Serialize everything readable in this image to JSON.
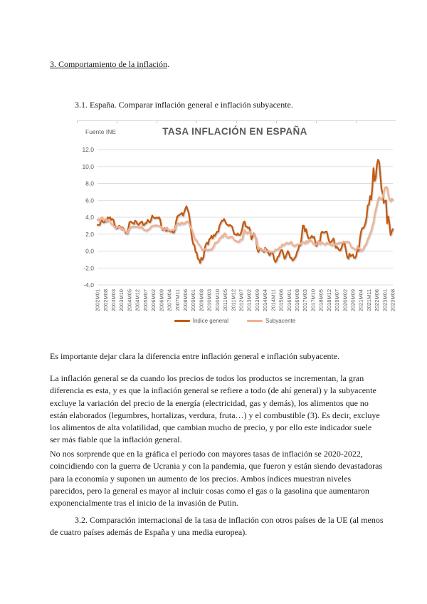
{
  "document": {
    "heading": "3. Comportamiento de la inflación",
    "heading_period": ".",
    "section_3_1": "3.1. España. Comparar inflación general e inflación subyacente.",
    "paragraph_intro": "Es importante dejar clara la diferencia entre inflación general e inflación subyacente.",
    "paragraph_general_vs_subyacente": "La inflación general se da cuando los precios de todos los productos se incrementan, la gran diferencia es esta, y es que la inflación general se refiere a todo (de ahí general) y la subyacente excluye la variación del precio de la energía (electricidad, gas y demás), los alimentos que no están elaborados (legumbres, hortalizas, verdura, fruta…) y el combustible (3). Es decir, excluye los alimentos de alta volatilidad, que cambian mucho de precio, y por ello este indicador suele ser más fiable que la inflación general.",
    "paragraph_grafica": "No nos sorprende que en la gráfica el periodo con mayores tasas de inflación se 2020-2022, coincidiendo con la guerra de Ucrania y con la pandemia, que fueron y están siendo devastadoras para la economía y suponen un aumento de los precios. Ambos índices muestran niveles parecidos, pero la general es mayor al incluir cosas como el gas o la gasolina que aumentaron exponencialmente tras el inicio de la invasión de Putin.",
    "section_3_2": "3.2. Comparación internacional de la tasa de inflación con otros países de la UE (al menos de cuatro países además de España y una media europea)."
  },
  "chart_data": {
    "type": "line",
    "title": "TASA INFLACIÓN EN ESPAÑA",
    "source_note": "Fuente INE",
    "xlabel": "",
    "ylabel": "",
    "ylim": [
      -4,
      12
    ],
    "y_tick_labels": [
      "12,0",
      "10,0",
      "8,0",
      "6,0",
      "4,0",
      "2,0",
      "0,0",
      "-2,0",
      "-4,0"
    ],
    "grid": true,
    "legend_position": "bottom",
    "x_frequency": "monthly",
    "months_per_tick": 7,
    "x_tick_labels": [
      "2002M01",
      "2002M08",
      "2003M03",
      "2003M10",
      "2004M05",
      "2004M12",
      "2005M07",
      "2006M02",
      "2006M09",
      "2007M04",
      "2007M11",
      "2008M06",
      "2009M01",
      "2009M08",
      "2010M03",
      "2010M10",
      "2011M05",
      "2011M12",
      "2012M07",
      "2013M02",
      "2013M09",
      "2014M04",
      "2014M11",
      "2015M06",
      "2016M01",
      "2016M08",
      "2017M03",
      "2017M10",
      "2018M05",
      "2018M12",
      "2019M07",
      "2020M02",
      "2020M09",
      "2021M04",
      "2021M11",
      "2022M06",
      "2023M01",
      "2023M08"
    ],
    "colors": {
      "indice_general": "#C55A11",
      "subyacente": "#F2B091"
    },
    "series": [
      {
        "name": "Índice general",
        "color_key": "indice_general",
        "values": [
          3.1,
          3.1,
          3.1,
          3.6,
          3.6,
          3.4,
          3.4,
          3.6,
          3.5,
          4.0,
          3.9,
          4.0,
          3.7,
          3.8,
          3.7,
          3.1,
          2.7,
          2.7,
          2.8,
          3.0,
          2.9,
          2.6,
          2.8,
          2.6,
          2.3,
          2.1,
          2.1,
          2.7,
          3.4,
          3.5,
          3.4,
          3.3,
          3.2,
          3.6,
          3.5,
          3.2,
          3.1,
          3.3,
          3.4,
          3.5,
          3.1,
          3.1,
          3.3,
          3.3,
          3.7,
          3.5,
          3.4,
          3.7,
          4.2,
          4.0,
          3.9,
          3.9,
          4.0,
          3.9,
          4.0,
          3.7,
          2.9,
          2.5,
          2.6,
          2.7,
          2.4,
          2.4,
          2.5,
          2.4,
          2.3,
          2.4,
          2.2,
          2.2,
          2.7,
          3.6,
          4.1,
          4.2,
          4.3,
          4.4,
          4.5,
          4.2,
          4.6,
          5.0,
          5.3,
          4.9,
          4.5,
          3.6,
          2.4,
          1.4,
          0.8,
          0.7,
          -0.1,
          -0.2,
          -0.9,
          -1.0,
          -1.4,
          -0.8,
          -1.0,
          -0.7,
          0.3,
          0.8,
          1.0,
          0.8,
          1.4,
          1.5,
          1.8,
          1.5,
          1.9,
          1.8,
          2.1,
          2.3,
          2.3,
          3.0,
          3.3,
          3.6,
          3.6,
          3.8,
          3.5,
          3.2,
          3.1,
          3.0,
          3.1,
          3.0,
          2.9,
          2.4,
          2.0,
          2.0,
          1.9,
          2.1,
          1.9,
          1.9,
          2.2,
          2.7,
          3.4,
          3.5,
          2.9,
          2.9,
          2.7,
          2.8,
          2.4,
          1.4,
          1.7,
          2.1,
          1.8,
          1.5,
          0.3,
          -0.1,
          0.2,
          0.3,
          0.2,
          0.0,
          -0.1,
          0.4,
          0.2,
          0.1,
          -0.3,
          -0.5,
          -0.2,
          -0.1,
          -0.4,
          -1.0,
          -1.3,
          -1.1,
          -0.7,
          -0.6,
          -0.2,
          0.1,
          0.1,
          -0.4,
          -0.9,
          -0.7,
          -0.3,
          0.0,
          -0.3,
          -0.8,
          -0.8,
          -1.1,
          -1.0,
          -0.8,
          -0.6,
          -0.1,
          0.2,
          0.7,
          0.7,
          1.6,
          3.0,
          3.0,
          2.3,
          2.6,
          1.9,
          1.5,
          1.5,
          1.6,
          1.8,
          1.6,
          1.7,
          1.1,
          0.6,
          1.1,
          1.2,
          1.1,
          2.1,
          2.3,
          2.2,
          2.2,
          2.3,
          2.3,
          1.7,
          1.2,
          1.0,
          1.1,
          1.3,
          1.5,
          0.8,
          0.4,
          0.5,
          0.3,
          0.1,
          0.1,
          0.4,
          0.8,
          1.1,
          0.7,
          0.0,
          -0.7,
          -0.9,
          -0.3,
          -0.6,
          -0.5,
          -0.4,
          -0.8,
          -0.8,
          -0.5,
          0.5,
          0.0,
          1.3,
          2.2,
          2.7,
          2.7,
          2.9,
          3.3,
          4.0,
          5.4,
          5.5,
          6.5,
          6.1,
          7.6,
          9.8,
          8.3,
          8.7,
          10.2,
          10.8,
          10.5,
          8.9,
          7.3,
          6.8,
          5.7,
          5.9,
          6.0,
          3.3,
          4.1,
          3.2,
          1.9,
          2.3,
          2.6
        ]
      },
      {
        "name": "Subyacente",
        "color_key": "subyacente",
        "values": [
          3.7,
          3.8,
          3.5,
          3.9,
          4.0,
          3.8,
          3.7,
          3.8,
          3.5,
          3.7,
          3.6,
          3.5,
          3.2,
          3.2,
          3.0,
          2.9,
          2.7,
          2.9,
          2.8,
          2.9,
          2.8,
          2.6,
          2.7,
          2.5,
          2.3,
          2.3,
          2.1,
          2.4,
          2.7,
          2.8,
          2.9,
          2.9,
          2.9,
          2.9,
          2.9,
          2.9,
          2.8,
          2.8,
          2.8,
          2.9,
          2.6,
          2.5,
          2.5,
          2.4,
          2.5,
          2.6,
          2.7,
          2.9,
          3.0,
          3.0,
          3.0,
          3.1,
          3.0,
          3.0,
          3.0,
          2.9,
          2.9,
          2.6,
          2.6,
          2.5,
          2.7,
          2.8,
          2.5,
          2.5,
          2.4,
          2.5,
          2.5,
          2.5,
          2.6,
          3.1,
          3.2,
          3.3,
          3.1,
          3.3,
          3.4,
          3.2,
          3.3,
          3.3,
          3.5,
          3.5,
          3.4,
          2.9,
          2.7,
          2.4,
          2.0,
          1.6,
          1.3,
          1.3,
          0.9,
          0.8,
          0.6,
          0.4,
          0.1,
          0.1,
          0.2,
          0.3,
          0.1,
          0.1,
          0.2,
          0.2,
          0.2,
          0.4,
          0.6,
          1.0,
          1.0,
          1.1,
          1.2,
          1.5,
          1.6,
          1.8,
          1.7,
          2.1,
          2.1,
          1.7,
          1.6,
          1.6,
          1.7,
          1.7,
          1.7,
          1.5,
          1.3,
          1.2,
          1.2,
          1.1,
          1.1,
          1.3,
          1.4,
          1.4,
          2.1,
          2.5,
          2.3,
          2.1,
          2.2,
          2.3,
          2.3,
          1.9,
          2.0,
          2.0,
          1.7,
          1.6,
          0.8,
          0.2,
          0.4,
          0.2,
          0.2,
          0.1,
          0.0,
          0.3,
          0.0,
          0.0,
          0.0,
          0.0,
          -0.1,
          -0.1,
          -0.1,
          0.0,
          0.2,
          0.2,
          0.2,
          0.3,
          0.5,
          0.5,
          0.8,
          0.7,
          0.8,
          0.9,
          1.0,
          0.9,
          0.9,
          1.0,
          1.1,
          0.7,
          0.7,
          0.6,
          0.7,
          0.8,
          0.8,
          0.8,
          0.8,
          1.0,
          1.1,
          1.0,
          0.9,
          1.2,
          1.0,
          1.2,
          1.4,
          1.2,
          1.2,
          0.9,
          0.8,
          0.8,
          0.8,
          1.1,
          1.2,
          0.8,
          1.1,
          1.0,
          0.9,
          0.8,
          0.8,
          1.0,
          0.9,
          0.9,
          0.8,
          0.7,
          0.7,
          0.9,
          0.7,
          0.9,
          0.9,
          0.9,
          1.0,
          1.0,
          1.0,
          1.0,
          1.0,
          1.1,
          1.1,
          1.1,
          1.1,
          1.0,
          0.6,
          0.4,
          0.4,
          0.3,
          0.2,
          0.1,
          0.6,
          0.3,
          0.3,
          0.0,
          0.2,
          0.2,
          0.6,
          0.7,
          1.0,
          1.4,
          1.7,
          2.1,
          2.4,
          3.0,
          3.4,
          4.4,
          4.9,
          5.5,
          6.1,
          6.4,
          6.2,
          6.2,
          6.3,
          7.0,
          7.5,
          7.6,
          7.5,
          6.6,
          6.1,
          5.9,
          6.2,
          6.1
        ]
      }
    ]
  }
}
